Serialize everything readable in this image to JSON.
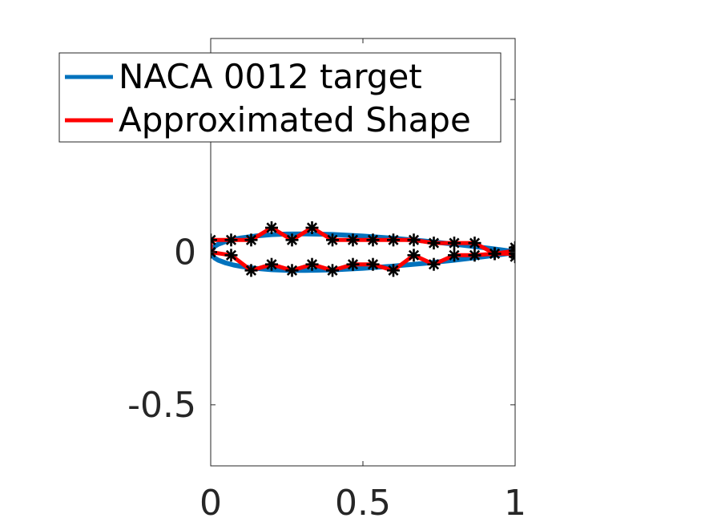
{
  "chart_data": {
    "type": "line",
    "title": "",
    "xlabel": "",
    "ylabel": "",
    "xlim": [
      0,
      1
    ],
    "ylim": [
      -0.7,
      0.7
    ],
    "x_ticks": [
      0,
      0.5,
      1
    ],
    "x_tick_labels": [
      "0",
      "0.5",
      "1"
    ],
    "y_ticks": [
      -0.5,
      0,
      0.5
    ],
    "y_tick_labels": [
      "-0.5",
      "0",
      ""
    ],
    "grid": false,
    "legend_position": "top-left",
    "axis_box": true,
    "series": [
      {
        "name": "NACA 0012 target",
        "color": "#0072BD",
        "x": [
          1.0,
          0.95,
          0.9,
          0.8,
          0.7,
          0.6,
          0.5,
          0.4,
          0.3,
          0.25,
          0.2,
          0.15,
          0.1,
          0.075,
          0.05,
          0.025,
          0.0125,
          0.0,
          0.0125,
          0.025,
          0.05,
          0.075,
          0.1,
          0.15,
          0.2,
          0.25,
          0.3,
          0.4,
          0.5,
          0.6,
          0.7,
          0.8,
          0.9,
          0.95,
          1.0
        ],
        "y": [
          0.0013,
          0.0081,
          0.0145,
          0.0262,
          0.0367,
          0.0456,
          0.0529,
          0.058,
          0.06,
          0.0594,
          0.0574,
          0.0534,
          0.0468,
          0.042,
          0.0355,
          0.0262,
          0.019,
          0.0,
          -0.019,
          -0.0262,
          -0.0355,
          -0.042,
          -0.0468,
          -0.0534,
          -0.0574,
          -0.0594,
          -0.06,
          -0.058,
          -0.0529,
          -0.0456,
          -0.0367,
          -0.0262,
          -0.0145,
          -0.0081,
          -0.0013
        ]
      },
      {
        "name": "Approximated Shape",
        "color": "#FF0000",
        "marker": "star",
        "marker_color": "#000000",
        "x": [
          1.0,
          1.0,
          0.933,
          0.867,
          0.8,
          0.733,
          0.667,
          0.6,
          0.533,
          0.467,
          0.4,
          0.333,
          0.267,
          0.2,
          0.133,
          0.067,
          0.0,
          0.0,
          0.067,
          0.133,
          0.2,
          0.267,
          0.333,
          0.4,
          0.467,
          0.533,
          0.6,
          0.667,
          0.733,
          0.8,
          0.867,
          0.933,
          1.0,
          1.0
        ],
        "y": [
          0.015,
          0.005,
          -0.005,
          0.03,
          0.03,
          0.03,
          0.04,
          0.04,
          0.04,
          0.04,
          0.04,
          0.08,
          0.04,
          0.08,
          0.04,
          0.04,
          0.04,
          0.0,
          -0.01,
          -0.06,
          -0.04,
          -0.06,
          -0.04,
          -0.06,
          -0.04,
          -0.04,
          -0.06,
          -0.01,
          -0.04,
          -0.01,
          -0.01,
          -0.005,
          -0.005,
          -0.015
        ]
      }
    ]
  }
}
